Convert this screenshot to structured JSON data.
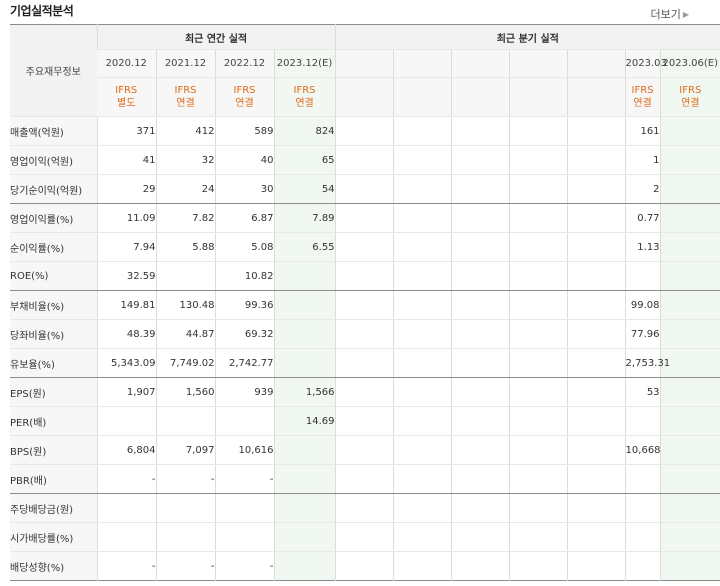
{
  "title": "기업실적분석",
  "more_label": "더보기",
  "header": {
    "row_header": "주요재무정보",
    "annual_group": "최근 연간 실적",
    "quarter_group": "최근 분기 실적",
    "periods": [
      "2020.12",
      "2021.12",
      "2022.12",
      "2023.12(E)",
      "",
      "",
      "",
      "",
      "",
      "2023.03",
      "2023.06(E)"
    ],
    "ifrs_top": [
      "IFRS",
      "IFRS",
      "IFRS",
      "IFRS",
      "",
      "",
      "",
      "",
      "",
      "IFRS",
      "IFRS"
    ],
    "ifrs_bottom": [
      "별도",
      "연결",
      "연결",
      "연결",
      "",
      "",
      "",
      "",
      "",
      "연결",
      "연결"
    ]
  },
  "rows": [
    {
      "label": "매출액(억원)",
      "values": [
        "371",
        "412",
        "589",
        "824",
        "",
        "",
        "",
        "",
        "",
        "161",
        ""
      ]
    },
    {
      "label": "영업이익(억원)",
      "values": [
        "41",
        "32",
        "40",
        "65",
        "",
        "",
        "",
        "",
        "",
        "1",
        ""
      ]
    },
    {
      "label": "당기순이익(억원)",
      "values": [
        "29",
        "24",
        "30",
        "54",
        "",
        "",
        "",
        "",
        "",
        "2",
        ""
      ]
    },
    {
      "label": "영업이익률(%)",
      "values": [
        "11.09",
        "7.82",
        "6.87",
        "7.89",
        "",
        "",
        "",
        "",
        "",
        "0.77",
        ""
      ]
    },
    {
      "label": "순이익률(%)",
      "values": [
        "7.94",
        "5.88",
        "5.08",
        "6.55",
        "",
        "",
        "",
        "",
        "",
        "1.13",
        ""
      ]
    },
    {
      "label": "ROE(%)",
      "values": [
        "32.59",
        "",
        "10.82",
        "",
        "",
        "",
        "",
        "",
        "",
        "",
        ""
      ]
    },
    {
      "label": "부채비율(%)",
      "values": [
        "149.81",
        "130.48",
        "99.36",
        "",
        "",
        "",
        "",
        "",
        "",
        "99.08",
        ""
      ]
    },
    {
      "label": "당좌비율(%)",
      "values": [
        "48.39",
        "44.87",
        "69.32",
        "",
        "",
        "",
        "",
        "",
        "",
        "77.96",
        ""
      ]
    },
    {
      "label": "유보율(%)",
      "values": [
        "5,343.09",
        "7,749.02",
        "2,742.77",
        "",
        "",
        "",
        "",
        "",
        "",
        "2,753.31",
        ""
      ]
    },
    {
      "label": "EPS(원)",
      "values": [
        "1,907",
        "1,560",
        "939",
        "1,566",
        "",
        "",
        "",
        "",
        "",
        "53",
        ""
      ]
    },
    {
      "label": "PER(배)",
      "values": [
        "",
        "",
        "",
        "14.69",
        "",
        "",
        "",
        "",
        "",
        "",
        ""
      ]
    },
    {
      "label": "BPS(원)",
      "values": [
        "6,804",
        "7,097",
        "10,616",
        "",
        "",
        "",
        "",
        "",
        "",
        "10,668",
        ""
      ]
    },
    {
      "label": "PBR(배)",
      "values": [
        "-",
        "-",
        "-",
        "",
        "",
        "",
        "",
        "",
        "",
        "",
        ""
      ]
    },
    {
      "label": "주당배당금(원)",
      "values": [
        "",
        "",
        "",
        "",
        "",
        "",
        "",
        "",
        "",
        "",
        ""
      ]
    },
    {
      "label": "시가배당률(%)",
      "values": [
        "",
        "",
        "",
        "",
        "",
        "",
        "",
        "",
        "",
        "",
        ""
      ]
    },
    {
      "label": "배당성향(%)",
      "values": [
        "-",
        "-",
        "-",
        "",
        "",
        "",
        "",
        "",
        "",
        "",
        ""
      ]
    }
  ]
}
